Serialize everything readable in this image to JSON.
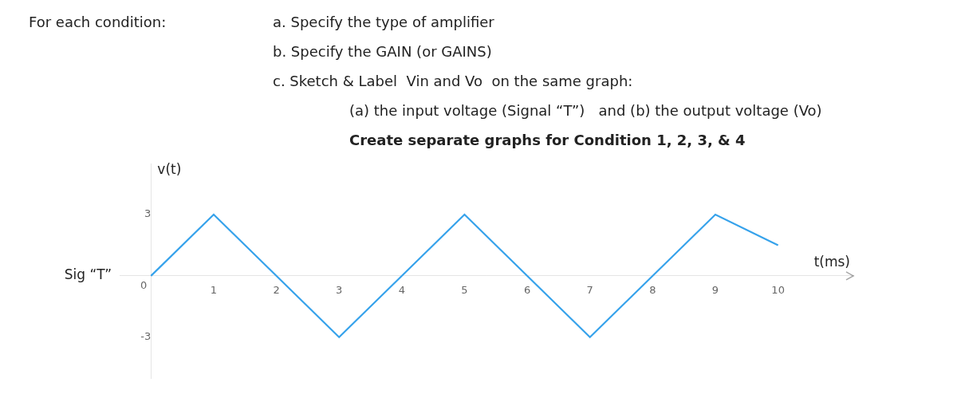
{
  "chart_data": {
    "type": "line",
    "annotations": [
      "For each condition:",
      "a. Specify the type of amplifier",
      "b. Specify the GAIN (or GAINS)",
      "c. Sketch & Label  Vin and Vo  on the same graph:",
      "(a) the input voltage (Signal “T”)   and (b) the output voltage (Vo)",
      "Create separate graphs for Condition 1, 2, 3, & 4",
      "Sig “T”"
    ],
    "xlabel": "t(ms)",
    "ylabel": "v(t)",
    "x": [
      0,
      1,
      3,
      5,
      7,
      9,
      10
    ],
    "values": [
      0,
      3,
      -3,
      3,
      -3,
      3,
      1.5
    ],
    "xlim": [
      -0.5,
      11.2
    ],
    "ylim": [
      -5.0,
      5.5
    ],
    "xticks": [
      0,
      1,
      2,
      3,
      4,
      5,
      6,
      7,
      8,
      9,
      10
    ],
    "yticks": [
      -3,
      3
    ],
    "grid": false
  }
}
